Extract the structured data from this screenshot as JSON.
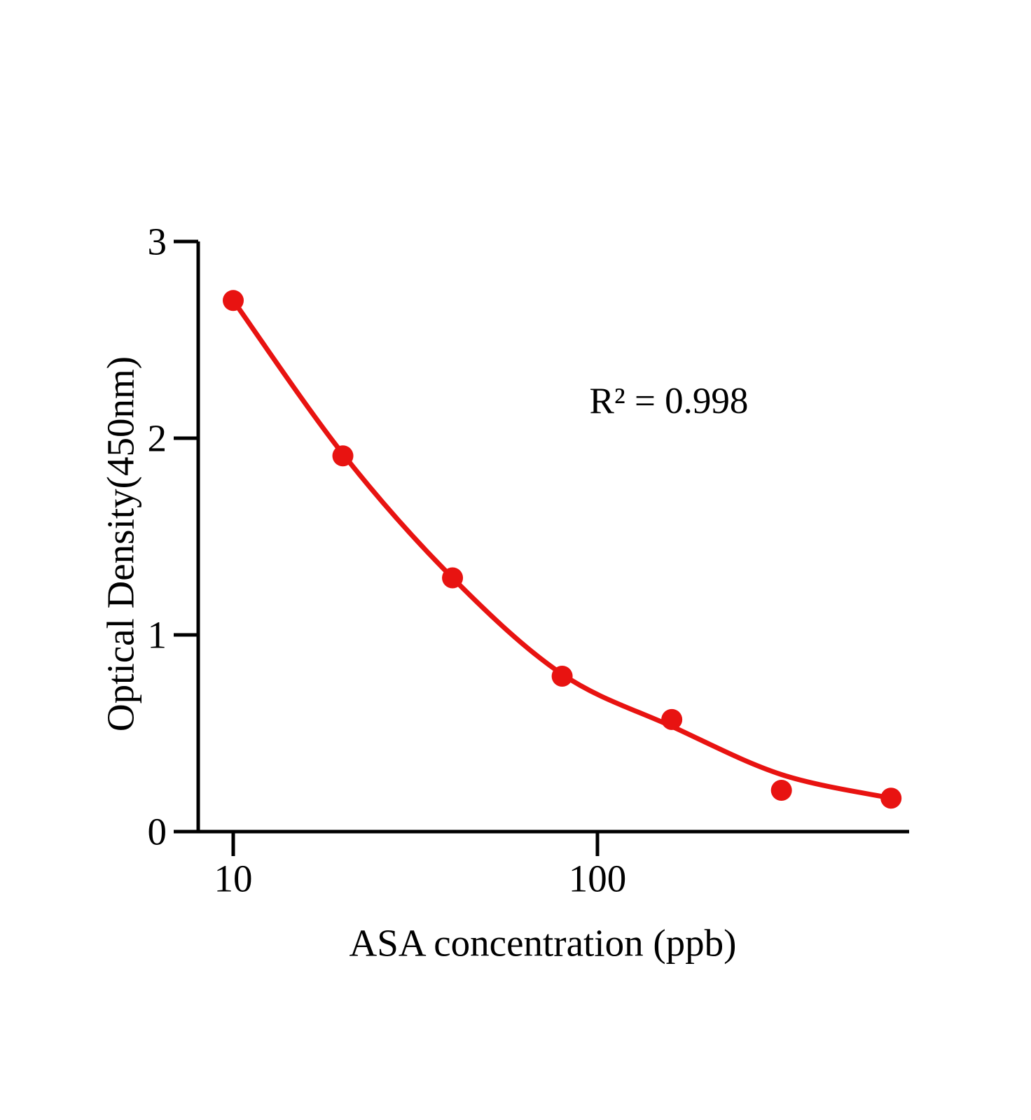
{
  "page": {
    "background_color": "#ffffff"
  },
  "chart_data": {
    "type": "scatter",
    "subtype": "ELISA standard curve (scatter points with fitted curve)",
    "title": "",
    "xlabel": "ASA concentration (ppb)",
    "ylabel": "Optical Density(450nm)",
    "annotation": "R² = 0.998",
    "x_scale": "log10",
    "y_scale": "linear",
    "xlim": [
      8,
      717
    ],
    "ylim": [
      0,
      3
    ],
    "x_ticks": [
      10,
      100
    ],
    "y_ticks": [
      0,
      1,
      2,
      3
    ],
    "grid": false,
    "legend": "none",
    "axis_color": "#000000",
    "text_color": "#000000",
    "accent_color": "#e81311",
    "series": [
      {
        "name": "standard-points",
        "type": "scatter",
        "color": "#e81311",
        "x": [
          10,
          20,
          40,
          80,
          160,
          320,
          640
        ],
        "y": [
          2.7,
          1.91,
          1.29,
          0.79,
          0.57,
          0.21,
          0.17
        ]
      },
      {
        "name": "fitted-curve",
        "type": "line",
        "color": "#e81311",
        "x": [
          10,
          20,
          40,
          80,
          160,
          320,
          640
        ],
        "y": [
          2.7,
          1.92,
          1.29,
          0.8,
          0.535,
          0.29,
          0.17
        ]
      }
    ]
  }
}
